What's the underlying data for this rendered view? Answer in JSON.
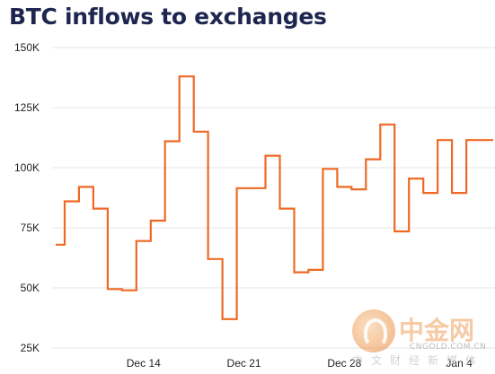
{
  "title": "BTC inflows to exchanges",
  "watermark": {
    "brand": "中金网",
    "url": "CNGOLD.COM.CN",
    "tagline": "中文财经新媒体"
  },
  "colors": {
    "line": "#ee6a24",
    "grid": "#e5e5e5",
    "axis_text": "#222222",
    "title": "#1e2650"
  },
  "chart_data": {
    "type": "line",
    "step": true,
    "title": "BTC inflows to exchanges",
    "xlabel": "",
    "ylabel": "",
    "ylim": [
      25000,
      150000
    ],
    "yticks": [
      25000,
      50000,
      75000,
      100000,
      125000,
      150000
    ],
    "ytick_labels": [
      "25K",
      "50K",
      "75K",
      "100K",
      "125K",
      "150K"
    ],
    "xticks": [
      {
        "label": "Dec 14",
        "day": 14
      },
      {
        "label": "Dec 21",
        "day": 21
      },
      {
        "label": "Dec 28",
        "day": 28
      },
      {
        "label": "Jan 4",
        "day": 36
      }
    ],
    "x_range": [
      7.5,
      38.5
    ],
    "grid": "horizontal",
    "legend": "none",
    "series": [
      {
        "x": [
          8,
          9,
          10,
          11,
          12,
          13,
          14,
          15,
          16,
          17,
          18,
          19,
          20,
          21,
          22,
          23,
          24,
          25,
          26,
          27,
          28,
          29,
          30,
          31,
          32,
          33,
          34,
          35,
          36,
          37,
          38
        ],
        "values": [
          68000,
          86000,
          92000,
          83000,
          49500,
          49000,
          69500,
          78000,
          111000,
          138000,
          115000,
          62000,
          37000,
          91500,
          91500,
          105000,
          83000,
          56500,
          57500,
          99500,
          92000,
          91000,
          103500,
          118000,
          73500,
          95500,
          89500,
          111500,
          89500,
          111500,
          111500
        ]
      }
    ]
  }
}
